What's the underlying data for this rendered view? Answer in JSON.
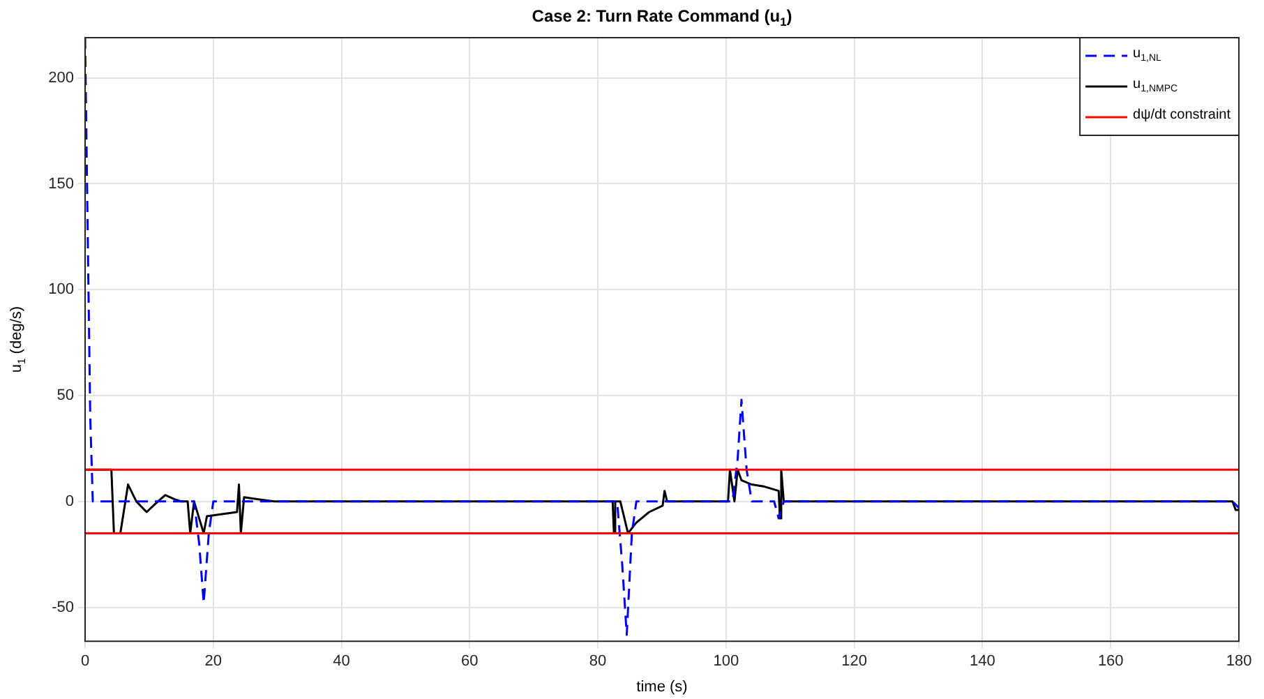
{
  "chart_data": {
    "type": "line",
    "title": "Case 2: Turn Rate Command (u$_{1}$)",
    "xlabel": "time (s)",
    "ylabel": "u$_{1}$ (deg/s)",
    "xlim": [
      0,
      180
    ],
    "xticks": [
      0,
      20,
      40,
      60,
      80,
      100,
      120,
      140,
      160,
      180
    ],
    "ylim": [
      -66,
      219
    ],
    "yticks": [
      -50,
      0,
      50,
      100,
      150,
      200
    ],
    "grid": true,
    "legend": "top right",
    "marker": "none",
    "series": [
      {
        "name": "u$_{1,NL}$",
        "color": "#0000ff",
        "line_style": "dashed",
        "x": [
          0,
          0.3,
          0.8,
          1.2,
          17,
          17.8,
          18.5,
          19.3,
          20,
          83,
          83.8,
          84.5,
          85.3,
          86,
          101,
          101.8,
          102.4,
          103.2,
          104,
          107.5,
          108.2,
          109,
          179,
          180
        ],
        "values": [
          219,
          150,
          40,
          0,
          0,
          -20,
          -48,
          -15,
          0,
          0,
          -30,
          -63,
          -15,
          0,
          0,
          20,
          48,
          15,
          0,
          0,
          -8,
          0,
          0,
          -3
        ]
      },
      {
        "name": "u$_{1,NMPC}$",
        "color": "#000000",
        "line_style": "solid",
        "x": [
          0,
          4.1,
          4.5,
          5.5,
          6.7,
          8,
          9.6,
          11,
          12.5,
          14,
          15,
          16,
          16.4,
          17,
          18.5,
          19,
          23.7,
          24,
          24.3,
          24.8,
          27,
          29.5,
          82.3,
          82.5,
          82.7,
          83.5,
          84.7,
          86,
          88,
          90.1,
          90.4,
          90.8,
          100.3,
          100.6,
          101.3,
          101.8,
          102.4,
          104,
          106,
          108.2,
          108.4,
          108.6,
          109,
          179,
          179.5,
          180
        ],
        "values": [
          15,
          15,
          -15,
          -15,
          8,
          0,
          -5,
          -1,
          3,
          1,
          0,
          0,
          -15,
          0,
          -15,
          -7,
          -5,
          8,
          -15,
          2,
          1,
          0,
          0,
          -15,
          0,
          0,
          -15,
          -10,
          -5,
          -2,
          5,
          0,
          0,
          15,
          0,
          15,
          10,
          8,
          7,
          5,
          -8,
          15,
          0,
          0,
          -4,
          -4
        ]
      }
    ],
    "ref_lines": [
      {
        "axis": "y",
        "value": 15,
        "label": "dψ/dt constraint",
        "color": "#ff0000"
      },
      {
        "axis": "y",
        "value": -15,
        "label": null,
        "color": "#ff0000"
      }
    ]
  }
}
